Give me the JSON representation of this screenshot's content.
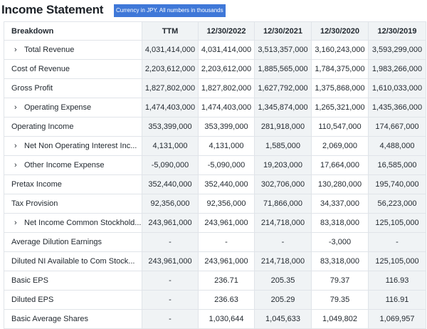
{
  "header": {
    "title": "Income Statement",
    "currency_note": "Currency in JPY. All numbers in thousands"
  },
  "table": {
    "columns": [
      "Breakdown",
      "TTM",
      "12/30/2022",
      "12/30/2021",
      "12/30/2020",
      "12/30/2019"
    ],
    "rows": [
      {
        "label": "Total Revenue",
        "expandable": true,
        "values": [
          "4,031,414,000",
          "4,031,414,000",
          "3,513,357,000",
          "3,160,243,000",
          "3,593,299,000"
        ]
      },
      {
        "label": "Cost of Revenue",
        "expandable": false,
        "values": [
          "2,203,612,000",
          "2,203,612,000",
          "1,885,565,000",
          "1,784,375,000",
          "1,983,266,000"
        ]
      },
      {
        "label": "Gross Profit",
        "expandable": false,
        "values": [
          "1,827,802,000",
          "1,827,802,000",
          "1,627,792,000",
          "1,375,868,000",
          "1,610,033,000"
        ]
      },
      {
        "label": "Operating Expense",
        "expandable": true,
        "values": [
          "1,474,403,000",
          "1,474,403,000",
          "1,345,874,000",
          "1,265,321,000",
          "1,435,366,000"
        ]
      },
      {
        "label": "Operating Income",
        "expandable": false,
        "values": [
          "353,399,000",
          "353,399,000",
          "281,918,000",
          "110,547,000",
          "174,667,000"
        ]
      },
      {
        "label": "Net Non Operating Interest Inc...",
        "expandable": true,
        "values": [
          "4,131,000",
          "4,131,000",
          "1,585,000",
          "2,069,000",
          "4,488,000"
        ]
      },
      {
        "label": "Other Income Expense",
        "expandable": true,
        "values": [
          "-5,090,000",
          "-5,090,000",
          "19,203,000",
          "17,664,000",
          "16,585,000"
        ]
      },
      {
        "label": "Pretax Income",
        "expandable": false,
        "values": [
          "352,440,000",
          "352,440,000",
          "302,706,000",
          "130,280,000",
          "195,740,000"
        ]
      },
      {
        "label": "Tax Provision",
        "expandable": false,
        "values": [
          "92,356,000",
          "92,356,000",
          "71,866,000",
          "34,337,000",
          "56,223,000"
        ]
      },
      {
        "label": "Net Income Common Stockhold...",
        "expandable": true,
        "values": [
          "243,961,000",
          "243,961,000",
          "214,718,000",
          "83,318,000",
          "125,105,000"
        ]
      },
      {
        "label": "Average Dilution Earnings",
        "expandable": false,
        "values": [
          "-",
          "-",
          "-",
          "-3,000",
          "-"
        ]
      },
      {
        "label": "Diluted NI Available to Com Stock...",
        "expandable": false,
        "values": [
          "243,961,000",
          "243,961,000",
          "214,718,000",
          "83,318,000",
          "125,105,000"
        ]
      },
      {
        "label": "Basic EPS",
        "expandable": false,
        "values": [
          "-",
          "236.71",
          "205.35",
          "79.37",
          "116.93"
        ]
      },
      {
        "label": "Diluted EPS",
        "expandable": false,
        "values": [
          "-",
          "236.63",
          "205.29",
          "79.35",
          "116.91"
        ]
      },
      {
        "label": "Basic Average Shares",
        "expandable": false,
        "values": [
          "-",
          "1,030,644",
          "1,045,633",
          "1,049,802",
          "1,069,957"
        ]
      }
    ]
  },
  "icons": {
    "expand": "chevron-right-icon"
  },
  "colors": {
    "badge_bg": "#3f78d8",
    "shaded_cell": "#f0f3f5",
    "border": "#e0e4e9"
  }
}
